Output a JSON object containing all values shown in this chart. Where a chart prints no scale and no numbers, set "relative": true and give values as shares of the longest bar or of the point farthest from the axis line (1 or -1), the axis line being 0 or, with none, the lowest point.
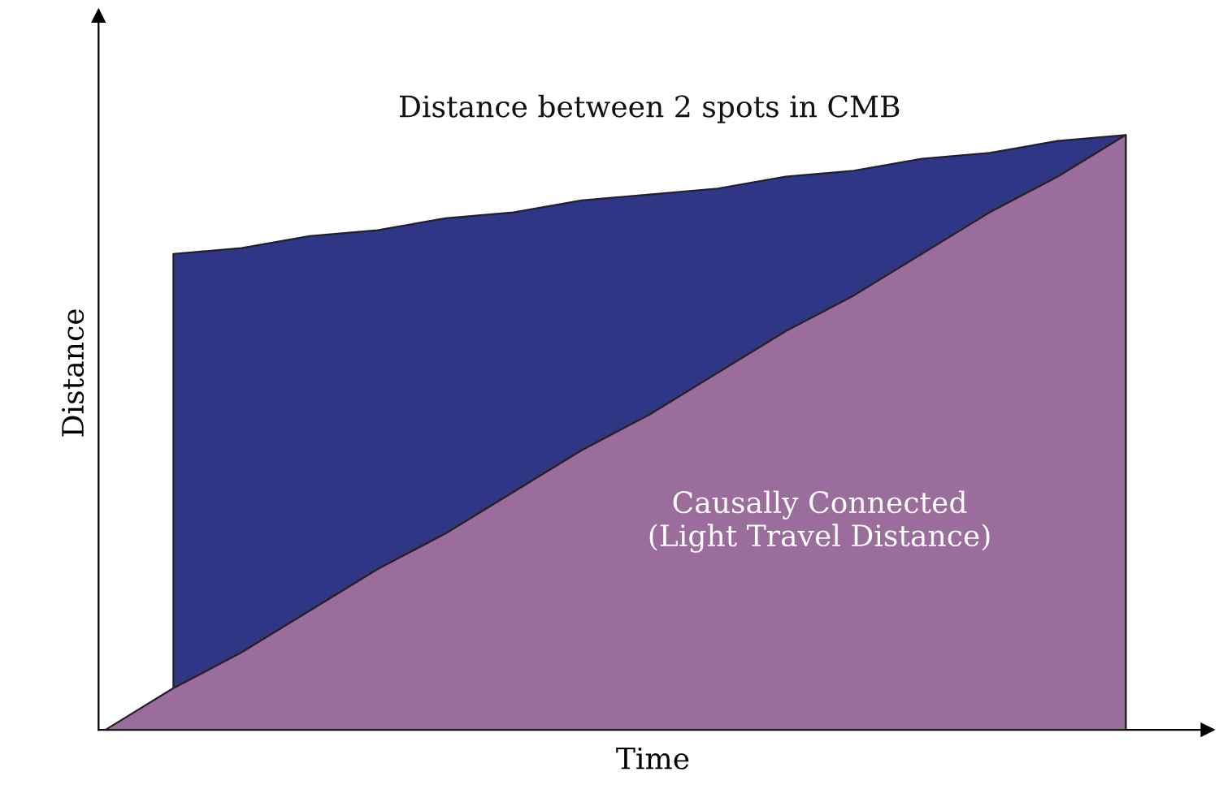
{
  "chart_data": {
    "type": "area",
    "relative": true,
    "xlabel": "Time",
    "ylabel": "Distance",
    "categories": [
      null,
      null,
      null,
      null,
      null,
      null,
      null,
      null,
      null,
      null,
      null,
      null,
      null,
      null,
      null,
      null
    ],
    "series": [
      {
        "name": "Distance between 2 spots in CMB",
        "color": "#2f3685",
        "values": [
          null,
          0.8,
          0.81,
          0.83,
          0.84,
          0.86,
          0.87,
          0.89,
          0.9,
          0.91,
          0.93,
          0.94,
          0.96,
          0.97,
          0.99,
          1.0
        ]
      },
      {
        "name": "Causally Connected\n(Light Travel Distance)",
        "color": "#9a6d9c",
        "values": [
          0,
          0.07,
          0.13,
          0.2,
          0.27,
          0.33,
          0.4,
          0.47,
          0.53,
          0.6,
          0.67,
          0.73,
          0.8,
          0.87,
          0.93,
          1.0
        ]
      }
    ],
    "grid": false,
    "legend": false
  }
}
